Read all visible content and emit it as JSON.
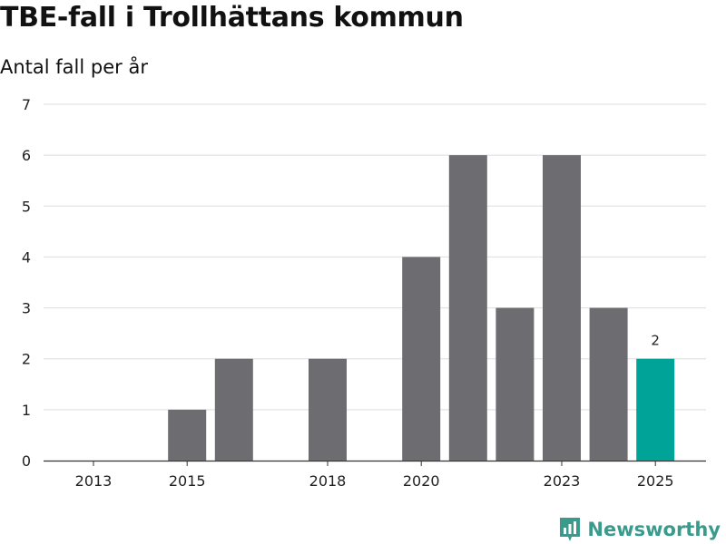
{
  "chart_data": {
    "type": "bar",
    "title": "TBE-fall i Trollhättans kommun",
    "subtitle": "Antal fall per år",
    "categories": [
      "2013",
      "2014",
      "2015",
      "2016",
      "2017",
      "2018",
      "2019",
      "2020",
      "2021",
      "2022",
      "2023",
      "2024",
      "2025"
    ],
    "values": [
      0,
      0,
      1,
      2,
      0,
      2,
      0,
      4,
      6,
      3,
      6,
      3,
      2
    ],
    "x_tick_labels": [
      "2013",
      "2015",
      "2018",
      "2020",
      "2023",
      "2025"
    ],
    "ylim": [
      0,
      7
    ],
    "y_ticks": [
      0,
      1,
      2,
      3,
      4,
      5,
      6,
      7
    ],
    "highlight_category": "2025",
    "data_labels": [
      {
        "category": "2025",
        "text": "2"
      }
    ],
    "colors": {
      "bar": "#6d6c71",
      "highlight": "#00a398",
      "grid": "#dddddd",
      "axis": "#333333"
    },
    "xlabel": "",
    "ylabel": ""
  },
  "branding": {
    "logo_text": "Newsworthy",
    "logo_icon": "newsworthy-chart-icon",
    "color": "#3a9a8c"
  }
}
